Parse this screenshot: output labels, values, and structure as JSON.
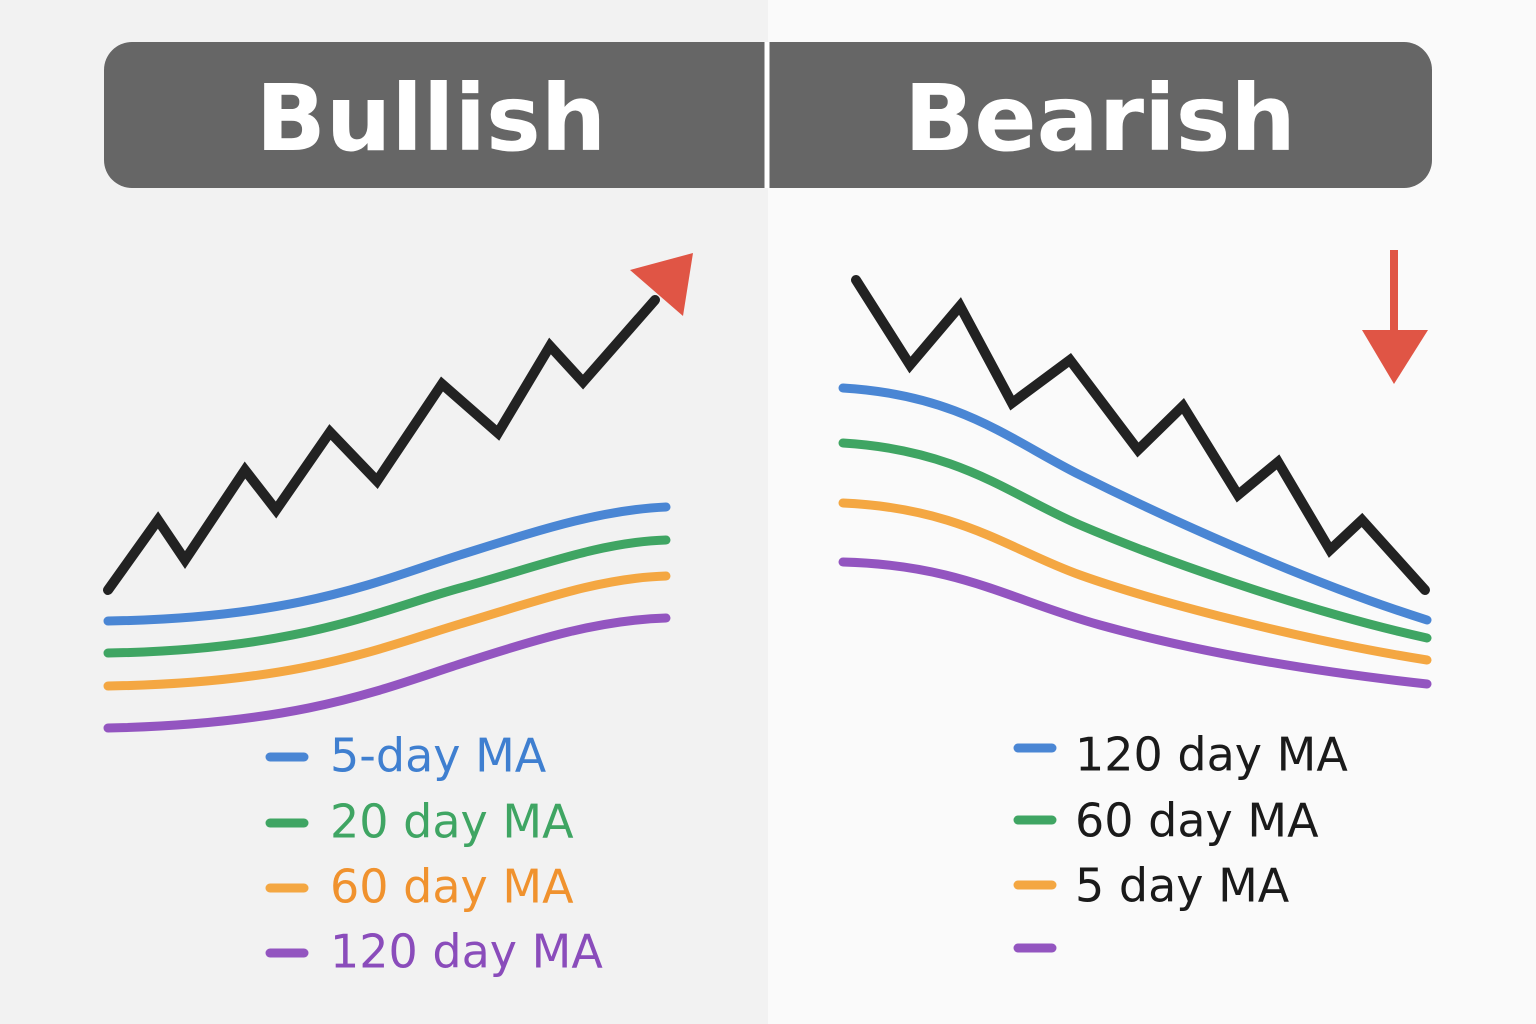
{
  "panels": [
    {
      "title": "Bullish",
      "legend": [
        "5-day MA",
        "20 day MA",
        "60 day MA",
        "120 day MA"
      ]
    },
    {
      "title": "Bearish",
      "legend": [
        "120 day MA",
        "60 day MA",
        "5 day MA"
      ]
    }
  ]
}
